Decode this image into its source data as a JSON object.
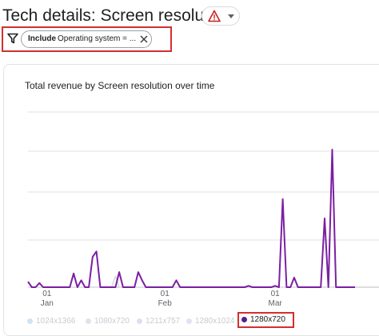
{
  "header": {
    "title": "Tech details: Screen resolution",
    "warning_icon": "warning-icon",
    "dropdown_icon": "caret-down-icon"
  },
  "filter": {
    "icon": "filter-icon",
    "chip_keyword": "Include",
    "chip_text": "Operating system = ...",
    "remove_icon": "close-icon"
  },
  "colors": {
    "accent_red": "#d32f2f",
    "series_purple": "#7b1fa2",
    "faded_series": "#d7dae0",
    "grid": "#e0e0e0"
  },
  "chart_data": {
    "type": "line",
    "title": "Total revenue by Screen resolution over time",
    "x_ticks": [
      {
        "day": "01",
        "month": "Jan",
        "index": 5
      },
      {
        "day": "01",
        "month": "Feb",
        "index": 36
      },
      {
        "day": "01",
        "month": "Mar",
        "index": 65
      }
    ],
    "series": [
      {
        "name": "1280x720",
        "values": [
          0.04,
          0.0,
          0.0,
          0.03,
          0.0,
          0.0,
          0.0,
          0.0,
          0.0,
          0.0,
          0.0,
          0.0,
          0.1,
          0.0,
          0.05,
          0.0,
          0.0,
          0.22,
          0.26,
          0.0,
          0.0,
          0.0,
          0.0,
          0.0,
          0.11,
          0.0,
          0.0,
          0.0,
          0.0,
          0.11,
          0.05,
          0.0,
          0.0,
          0.0,
          0.0,
          0.0,
          0.0,
          0.0,
          0.0,
          0.05,
          0.0,
          0.0,
          0.0,
          0.0,
          0.0,
          0.0,
          0.0,
          0.0,
          0.0,
          0.0,
          0.0,
          0.0,
          0.0,
          0.0,
          0.0,
          0.0,
          0.0,
          0.0,
          0.01,
          0.0,
          0.0,
          0.0,
          0.0,
          0.0,
          0.0,
          0.01,
          0.0,
          0.64,
          0.0,
          0.0,
          0.07,
          0.0,
          0.0,
          0.0,
          0.0,
          0.0,
          0.0,
          0.0,
          0.5,
          0.0,
          1.0,
          0.0,
          0.0,
          0.0,
          0.0,
          0.0,
          0.0
        ]
      },
      {
        "name": "1024x1366",
        "values": [
          0.0,
          0.0,
          0.0,
          0.0,
          0.0,
          0.0,
          0.0,
          0.0,
          0.0,
          0.0,
          0.0,
          0.0,
          0.0,
          0.0,
          0.0,
          0.0,
          0.0,
          0.0,
          0.0,
          0.0,
          0.0,
          0.0,
          0.0,
          0.08,
          0.0,
          0.0,
          0.0,
          0.0,
          0.0,
          0.0,
          0.0,
          0.0,
          0.0,
          0.0,
          0.0,
          0.0,
          0.0,
          0.0,
          0.0,
          0.0,
          0.0,
          0.0,
          0.0,
          0.0,
          0.0,
          0.0,
          0.0,
          0.0,
          0.0,
          0.0,
          0.0,
          0.0,
          0.0,
          0.0,
          0.0,
          0.0,
          0.0,
          0.0,
          0.0,
          0.0,
          0.0,
          0.0,
          0.0,
          0.0,
          0.0,
          0.0,
          0.0,
          0.0,
          0.0,
          0.0,
          0.0,
          0.0,
          0.0,
          0.0,
          0.0,
          0.0,
          0.0,
          0.0,
          0.0,
          0.0,
          0.0,
          0.0,
          0.0,
          0.0,
          0.0,
          0.0,
          0.0
        ]
      }
    ],
    "ylim": [
      0,
      1
    ],
    "grid": true,
    "legend_position": "bottom"
  },
  "legend": [
    {
      "label": "1024x1366",
      "color": "#cfe3f5",
      "active": false
    },
    {
      "label": "1080x720",
      "color": "#dde3ea",
      "active": false
    },
    {
      "label": "1211x757",
      "color": "#e2ddf0",
      "active": false
    },
    {
      "label": "1280x1024",
      "color": "#e6e0f2",
      "active": false
    },
    {
      "label": "1280x720",
      "color": "#5b1b8c",
      "active": true
    }
  ]
}
